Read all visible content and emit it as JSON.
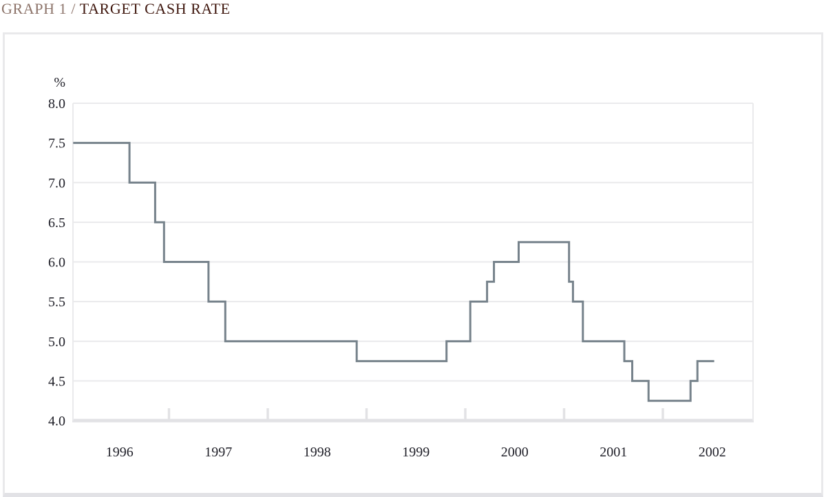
{
  "page": {
    "title_prefix": "GRAPH 1 /",
    "title_main": "TARGET CASH RATE"
  },
  "chart_data": {
    "type": "line",
    "style": "step",
    "title": "TARGET CASH RATE",
    "ylabel": "%",
    "unit_label": "%",
    "ylim": [
      4.0,
      8.0
    ],
    "ytick_step": 0.5,
    "ytick_labels": [
      "8.0",
      "7.5",
      "7.0",
      "6.5",
      "6.0",
      "5.5",
      "5.0",
      "4.5",
      "4.0"
    ],
    "xtick_labels": [
      "1996",
      "1997",
      "1998",
      "1999",
      "2000",
      "2001",
      "2002"
    ],
    "x_plot_range": [
      1996.0,
      2002.91
    ],
    "grid": true,
    "legend_position": "none",
    "series": [
      {
        "name": "Target cash rate (%)",
        "note": "each point = [decimal year of rate change, new rate level]; first point is starting level",
        "points": [
          [
            1996.03,
            7.5
          ],
          [
            1996.6,
            7.0
          ],
          [
            1996.86,
            6.5
          ],
          [
            1996.95,
            6.0
          ],
          [
            1997.4,
            5.5
          ],
          [
            1997.57,
            5.0
          ],
          [
            1998.9,
            4.75
          ],
          [
            1999.81,
            5.0
          ],
          [
            2000.05,
            5.5
          ],
          [
            2000.22,
            5.75
          ],
          [
            2000.29,
            6.0
          ],
          [
            2000.54,
            6.25
          ],
          [
            2001.05,
            5.75
          ],
          [
            2001.09,
            5.5
          ],
          [
            2001.19,
            5.0
          ],
          [
            2001.61,
            4.75
          ],
          [
            2001.69,
            4.5
          ],
          [
            2001.855,
            4.25
          ],
          [
            2002.28,
            4.5
          ],
          [
            2002.35,
            4.75
          ]
        ],
        "line_end_x": 2002.52
      }
    ],
    "colors": {
      "line": "#76828b",
      "grid": "#eaeaec",
      "axis": "#e2e2e5",
      "tick": "#e2e2e5",
      "label": "#1d1d26",
      "title_prefix": "#8c7369",
      "title_main": "#3f170e"
    }
  }
}
